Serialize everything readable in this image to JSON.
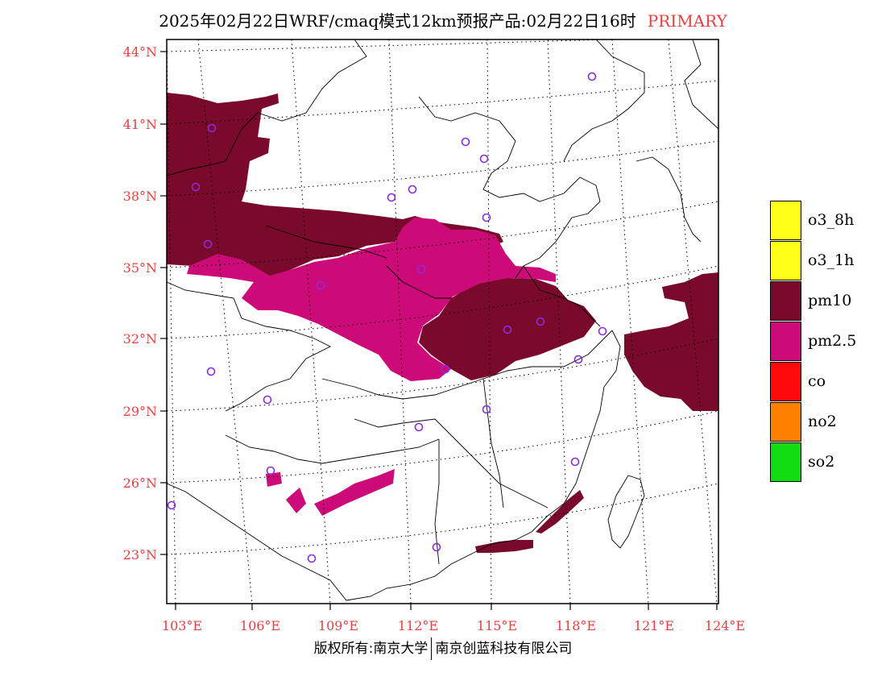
{
  "header": {
    "title": "2025年02月22日WRF/cmaq模式12km预报产品:02月22日16时",
    "tag": "PRIMARY"
  },
  "axes": {
    "lat_labels": [
      "44°N",
      "41°N",
      "38°N",
      "35°N",
      "32°N",
      "29°N",
      "26°N",
      "23°N"
    ],
    "lon_labels": [
      "103°E",
      "106°E",
      "109°E",
      "112°E",
      "115°E",
      "118°E",
      "121°E",
      "124°E"
    ]
  },
  "legend": {
    "items": [
      {
        "label": "o3_8h",
        "color": "#ffff1a"
      },
      {
        "label": "o3_1h",
        "color": "#ffff1a"
      },
      {
        "label": "pm10",
        "color": "#7a0a2c"
      },
      {
        "label": "pm2.5",
        "color": "#cc0a78"
      },
      {
        "label": "co",
        "color": "#ff0a0a"
      },
      {
        "label": "no2",
        "color": "#ff7f00"
      },
      {
        "label": "so2",
        "color": "#11dd11"
      }
    ]
  },
  "footer": {
    "copyright_left": "版权所有:南京大学",
    "copyright_right": "南京创蓝科技有限公司"
  },
  "colors": {
    "pm10": "#7a0a2c",
    "pm2_5": "#cc0a78",
    "station_marker": "#8a2be2",
    "axis_label": "#e8403f"
  }
}
